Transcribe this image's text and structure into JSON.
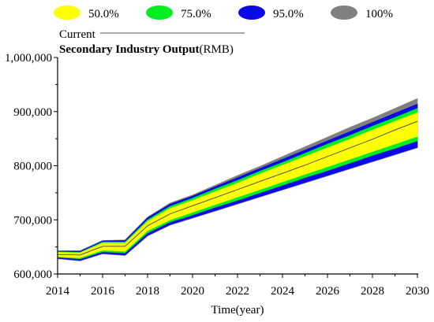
{
  "chart_data": {
    "type": "area",
    "title": "Secondary Industry Output",
    "title_unit": "(RMB)",
    "xlabel": "Time(year)",
    "ylabel": "",
    "xlim": [
      2014,
      2030
    ],
    "ylim": [
      600000,
      1000000
    ],
    "grid": false,
    "legend_position": "top",
    "xticks": [
      2014,
      2016,
      2018,
      2020,
      2022,
      2024,
      2026,
      2028,
      2030
    ],
    "yticks": [
      {
        "value": 600000,
        "label": "600,000"
      },
      {
        "value": 700000,
        "label": "700,000"
      },
      {
        "value": 800000,
        "label": "800,000"
      },
      {
        "value": 900000,
        "label": "900,000"
      },
      {
        "value": 1000000,
        "label": "1,000,000"
      }
    ],
    "x": [
      2014,
      2015,
      2016,
      2017,
      2018,
      2019,
      2020,
      2021,
      2022,
      2023,
      2024,
      2025,
      2026,
      2027,
      2028,
      2029,
      2030
    ],
    "current": {
      "name": "Current",
      "color": "#555555",
      "values": [
        636000,
        635000,
        651000,
        651000,
        689000,
        711000,
        726000,
        741000,
        756000,
        771000,
        786000,
        801000,
        817000,
        833000,
        849000,
        866000,
        882000
      ]
    },
    "bands": [
      {
        "name": "50.0%",
        "color": "#ffff00",
        "lower": [
          632000,
          630000,
          644000,
          642000,
          680000,
          700000,
          714000,
          728000,
          742000,
          756000,
          770000,
          784000,
          798000,
          812000,
          826000,
          840000,
          854000
        ],
        "upper": [
          640000,
          639000,
          657000,
          657000,
          697000,
          721000,
          736000,
          752000,
          768000,
          785000,
          801000,
          817000,
          833000,
          849000,
          866000,
          882000,
          898000
        ]
      },
      {
        "name": "75.0%",
        "color": "#00ee22",
        "lower": [
          631000,
          628000,
          641000,
          639000,
          676000,
          696000,
          709000,
          723000,
          736000,
          750000,
          764000,
          778000,
          791000,
          805000,
          819000,
          832000,
          846000
        ],
        "upper": [
          641000,
          640000,
          659000,
          659000,
          700000,
          725000,
          740000,
          757000,
          773000,
          790000,
          806000,
          823000,
          840000,
          856000,
          873000,
          889000,
          906000
        ]
      },
      {
        "name": "95.0%",
        "color": "#0a0ae6",
        "lower": [
          629000,
          625000,
          638000,
          635000,
          671000,
          691000,
          704000,
          717000,
          730000,
          743000,
          756000,
          769000,
          782000,
          795000,
          808000,
          821000,
          834000
        ],
        "upper": [
          642000,
          642000,
          661000,
          662000,
          704000,
          729000,
          744000,
          761000,
          778000,
          795000,
          812000,
          829000,
          846000,
          863000,
          880000,
          897000,
          914000
        ]
      },
      {
        "name": "100%",
        "color": "#808080",
        "lower": [
          628000,
          624000,
          637000,
          634000,
          670000,
          690000,
          703000,
          716000,
          729000,
          742000,
          755000,
          768000,
          781000,
          794000,
          807000,
          820000,
          833000
        ],
        "upper": [
          643000,
          643000,
          662000,
          663000,
          705000,
          731000,
          746000,
          764000,
          782000,
          799000,
          817000,
          835000,
          853000,
          871000,
          888000,
          906000,
          924000
        ]
      }
    ]
  }
}
